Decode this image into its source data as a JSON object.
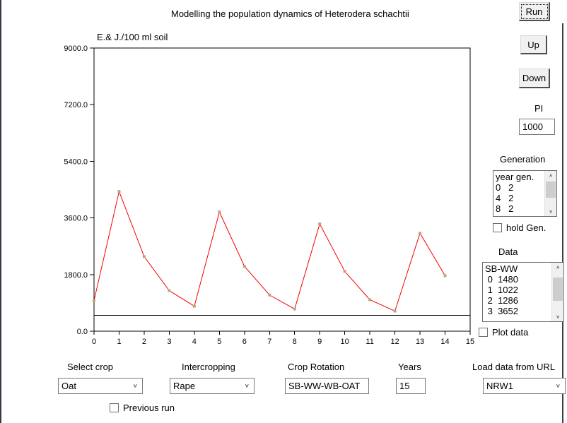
{
  "title": "Modelling the population dynamics of Heterodera schachtii",
  "chart_data": {
    "type": "line",
    "title": "E.& J./100 ml soil",
    "xlabel": "",
    "ylabel": "E.& J./100 ml soil",
    "x": [
      0,
      1,
      2,
      3,
      4,
      5,
      6,
      7,
      8,
      9,
      10,
      11,
      12,
      13,
      14
    ],
    "values": [
      975,
      4440,
      2370,
      1290,
      795,
      3790,
      2060,
      1150,
      705,
      3410,
      1900,
      1000,
      640,
      3115,
      1765
    ],
    "threshold_line": 500,
    "xlim": [
      0,
      15
    ],
    "ylim": [
      0,
      9000
    ],
    "x_tick_values": [
      0,
      1,
      2,
      3,
      4,
      5,
      6,
      7,
      8,
      9,
      10,
      11,
      12,
      13,
      14,
      15
    ],
    "x_tick_labels": [
      "0",
      "1",
      "2",
      "3",
      "4",
      "5",
      "6",
      "7",
      "8",
      "9",
      "10",
      "11",
      "12",
      "13",
      "14",
      "15"
    ],
    "y_tick_values": [
      0,
      1800,
      3600,
      5400,
      7200,
      9000
    ],
    "y_tick_labels": [
      "0.0",
      "1800.0",
      "3600.0",
      "5400.0",
      "7200.0",
      "9000.0"
    ],
    "line_color": "#f40000",
    "marker_color": "#bfa57e",
    "axis_color": "#000000",
    "grid": false,
    "legend": null
  },
  "buttons": {
    "run": "Run",
    "up": "Up",
    "down": "Down"
  },
  "pi": {
    "label": "PI",
    "value": "1000"
  },
  "generation": {
    "label": "Generation",
    "items": [
      "year gen.",
      "0   2",
      "4   2",
      "8   2"
    ],
    "hold_label": "hold Gen."
  },
  "data_panel": {
    "label": "Data",
    "items": [
      "SB-WW",
      " 0  1480",
      " 1  1022",
      " 2  1286",
      " 3  3652"
    ],
    "plot_label": "Plot data"
  },
  "bottom": {
    "select_crop": {
      "label": "Select crop",
      "value": "Oat"
    },
    "intercropping": {
      "label": "Intercropping",
      "value": "Rape"
    },
    "crop_rotation": {
      "label": "Crop Rotation",
      "value": "SB-WW-WB-OAT"
    },
    "years": {
      "label": "Years",
      "value": "15"
    },
    "load_url": {
      "label": "Load data from URL",
      "value": "NRW1"
    },
    "previous_run_label": "Previous run"
  },
  "icons": {
    "dropdown_chevron": "∨",
    "scroll_up": "∧",
    "scroll_down": "∨"
  },
  "colors": {
    "window_border": "#333a46",
    "button_face": "#f1f1f1",
    "scrollbar_thumb": "#cdcdcd"
  }
}
